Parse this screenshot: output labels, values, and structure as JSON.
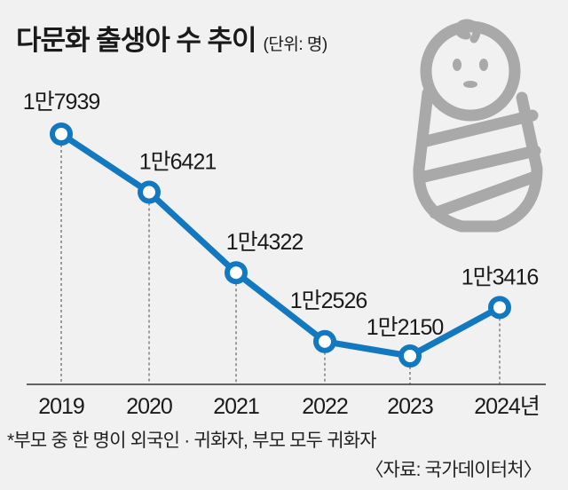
{
  "chart_data": {
    "type": "line",
    "title": "다문화 출생아 수 추이",
    "unit": "(단위: 명)",
    "categories": [
      "2019",
      "2020",
      "2021",
      "2022",
      "2023",
      "2024년"
    ],
    "values": [
      17939,
      16421,
      14322,
      12526,
      12150,
      13416
    ],
    "data_labels": [
      "1만7939",
      "1만6421",
      "1만4322",
      "1만2526",
      "1만2150",
      "1만3416"
    ],
    "grid": false,
    "legend": "none",
    "line_color": "#1279c0",
    "icon": "swaddled-baby-icon"
  },
  "footnote": "*부모 중 한 명이 외국인 · 귀화자, 부모 모두 귀화자",
  "source": "〈자료: 국가데이터처〉"
}
